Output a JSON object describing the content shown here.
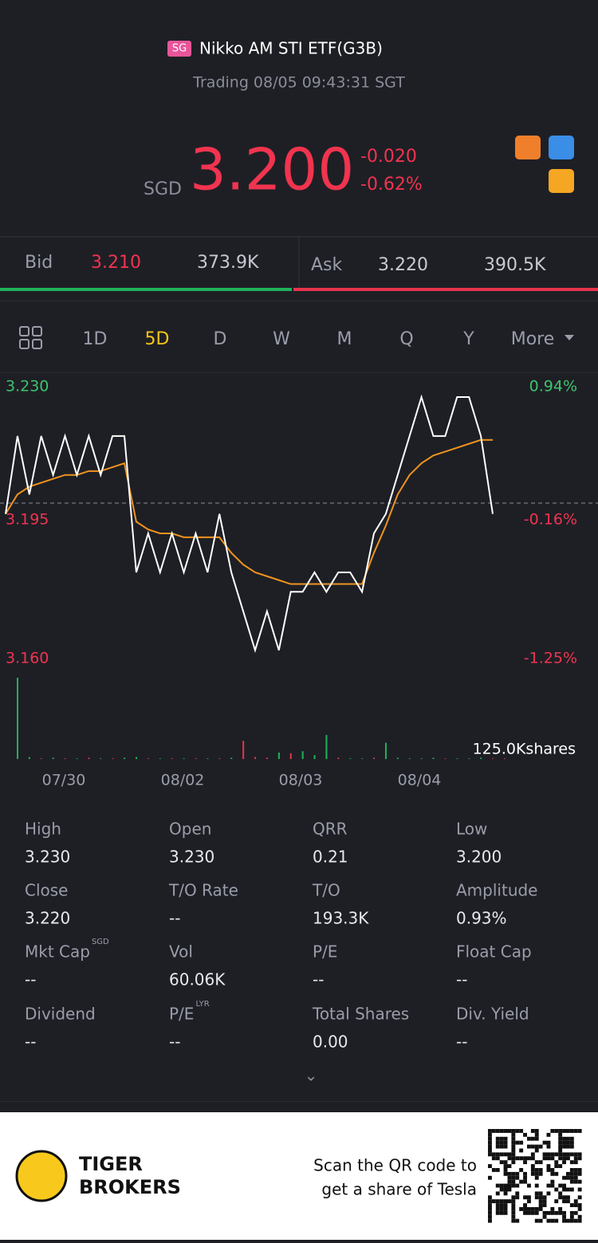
{
  "header": {
    "badge": "SG",
    "name": "Nikko AM STI ETF(G3B)",
    "status": "Trading 08/05 09:43:31 SGT"
  },
  "quote": {
    "currency": "SGD",
    "price": "3.200",
    "change": "-0.020",
    "change_pct": "-0.62%"
  },
  "bidask": {
    "bid_label": "Bid",
    "bid": "3.210",
    "bid_size": "373.9K",
    "ask_label": "Ask",
    "ask": "3.220",
    "ask_size": "390.5K"
  },
  "tabs": {
    "items": [
      "1D",
      "5D",
      "D",
      "W",
      "M",
      "Q",
      "Y",
      "More"
    ],
    "active": 1
  },
  "chart": {
    "type": "line",
    "ylim": [
      3.16,
      3.23
    ],
    "left_labels": [
      "3.230",
      "3.195",
      "3.160"
    ],
    "right_labels": [
      "0.94%",
      "-0.16%",
      "-1.25%"
    ],
    "dates": [
      "07/30",
      "08/02",
      "08/03",
      "08/04"
    ],
    "volume_label": "125.0Kshares",
    "volume_lim": [
      0,
      125000
    ],
    "price": [
      3.2,
      3.22,
      3.205,
      3.22,
      3.21,
      3.22,
      3.21,
      3.22,
      3.21,
      3.22,
      3.22,
      3.185,
      3.195,
      3.185,
      3.195,
      3.185,
      3.195,
      3.185,
      3.2,
      3.185,
      3.175,
      3.165,
      3.175,
      3.165,
      3.18,
      3.18,
      3.185,
      3.18,
      3.185,
      3.185,
      3.18,
      3.195,
      3.2,
      3.21,
      3.22,
      3.23,
      3.22,
      3.22,
      3.23,
      3.23,
      3.22,
      3.2
    ],
    "average": [
      3.2,
      3.205,
      3.207,
      3.208,
      3.209,
      3.21,
      3.21,
      3.211,
      3.211,
      3.212,
      3.213,
      3.198,
      3.196,
      3.195,
      3.195,
      3.194,
      3.194,
      3.194,
      3.194,
      3.19,
      3.187,
      3.185,
      3.184,
      3.183,
      3.182,
      3.182,
      3.182,
      3.182,
      3.182,
      3.182,
      3.182,
      3.19,
      3.197,
      3.205,
      3.21,
      3.213,
      3.215,
      3.216,
      3.217,
      3.218,
      3.219,
      3.219
    ],
    "volume": [
      125000,
      3000,
      1000,
      2000,
      1000,
      1000,
      2000,
      1000,
      1000,
      2000,
      3000,
      1000,
      1000,
      1000,
      1000,
      1000,
      1000,
      1000,
      2000,
      28000,
      3000,
      2000,
      10000,
      9000,
      12000,
      6000,
      37000,
      2000,
      1000,
      1000,
      2000,
      25000,
      2000,
      1000,
      1000,
      2000,
      1000,
      1000,
      1000,
      2000,
      1000,
      1000
    ]
  },
  "stats": [
    {
      "label": "High",
      "value": "3.230"
    },
    {
      "label": "Open",
      "value": "3.230"
    },
    {
      "label": "QRR",
      "value": "0.21"
    },
    {
      "label": "Low",
      "value": "3.200"
    },
    {
      "label": "Close",
      "value": "3.220"
    },
    {
      "label": "T/O Rate",
      "value": "--"
    },
    {
      "label": "T/O",
      "value": "193.3K"
    },
    {
      "label": "Amplitude",
      "value": "0.93%"
    },
    {
      "label": "Mkt Cap",
      "sup": "SGD",
      "value": "--"
    },
    {
      "label": "Vol",
      "value": "60.06K"
    },
    {
      "label": "P/E",
      "value": "--"
    },
    {
      "label": "Float Cap",
      "value": "--"
    },
    {
      "label": "Dividend",
      "value": "--"
    },
    {
      "label": "P/E",
      "sup": "LYR",
      "value": "--"
    },
    {
      "label": "Total Shares",
      "value": "0.00"
    },
    {
      "label": "Div. Yield",
      "value": "--"
    }
  ],
  "footer": {
    "brand": [
      "TIGER",
      "BROKERS"
    ],
    "slogan": [
      "Scan the QR code to",
      "get a share of Tesla"
    ]
  }
}
